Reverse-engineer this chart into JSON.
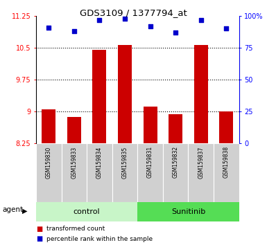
{
  "title": "GDS3109 / 1377794_at",
  "samples": [
    "GSM159830",
    "GSM159833",
    "GSM159834",
    "GSM159835",
    "GSM159831",
    "GSM159832",
    "GSM159837",
    "GSM159838"
  ],
  "red_values": [
    9.05,
    8.87,
    10.45,
    10.57,
    9.12,
    8.93,
    10.57,
    9.0
  ],
  "blue_values": [
    91,
    88,
    97,
    98,
    92,
    87,
    97,
    90
  ],
  "groups": [
    {
      "label": "control",
      "indices": [
        0,
        1,
        2,
        3
      ],
      "color": "#c8f5c8"
    },
    {
      "label": "Sunitinib",
      "indices": [
        4,
        5,
        6,
        7
      ],
      "color": "#55dd55"
    }
  ],
  "ylim_left": [
    8.25,
    11.25
  ],
  "ylim_right": [
    0,
    100
  ],
  "yticks_left": [
    8.25,
    9.0,
    9.75,
    10.5,
    11.25
  ],
  "yticks_right": [
    0,
    25,
    50,
    75,
    100
  ],
  "ytick_labels_left": [
    "8.25",
    "9",
    "9.75",
    "10.5",
    "11.25"
  ],
  "ytick_labels_right": [
    "0",
    "25",
    "50",
    "75",
    "100%"
  ],
  "bar_color": "#cc0000",
  "dot_color": "#0000cc",
  "bar_width": 0.55,
  "agent_label": "agent",
  "legend_bar_label": "transformed count",
  "legend_dot_label": "percentile rank within the sample",
  "bar_bottom": 8.25,
  "sample_box_color": "#d0d0d0",
  "bg_color": "#ffffff"
}
